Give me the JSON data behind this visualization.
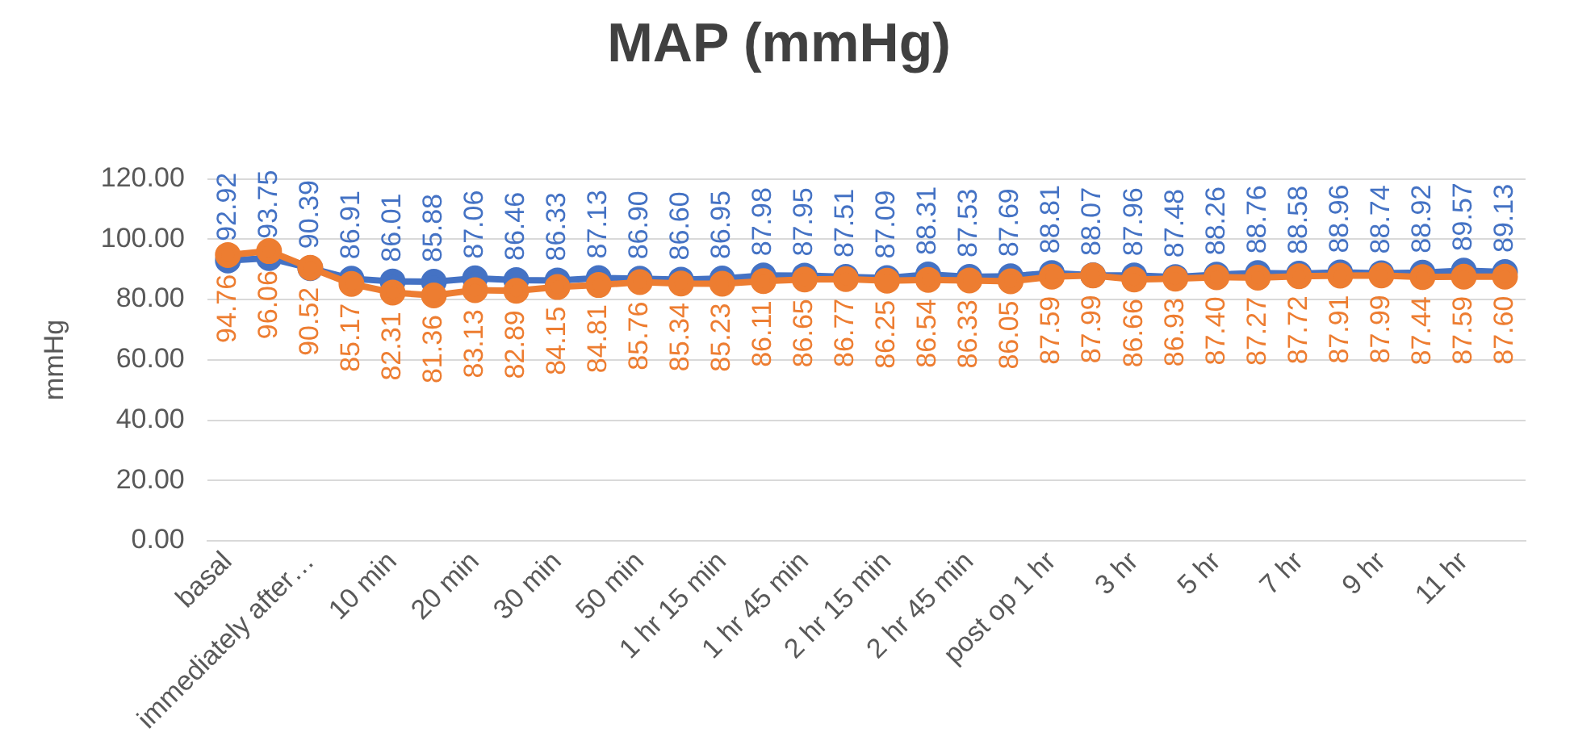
{
  "chart_data": {
    "type": "line",
    "title": "MAP (mmHg)",
    "ylabel": "mmHg",
    "categories": [
      "basal",
      null,
      "immediately after…",
      null,
      "10 min",
      null,
      "20 min",
      null,
      "30 min",
      null,
      "50 min",
      null,
      "1 hr 15 min",
      null,
      "1 hr 45 min",
      null,
      "2 hr 15 min",
      null,
      "2 hr 45 min",
      null,
      "post op 1 hr",
      null,
      "3 hr",
      null,
      "5 hr",
      null,
      "7 hr",
      null,
      "9 hr",
      null,
      "11 hr",
      null
    ],
    "series": [
      {
        "color": "#4472c4",
        "values": [
          92.92,
          93.75,
          90.39,
          86.91,
          86.01,
          85.88,
          87.06,
          86.46,
          86.33,
          87.13,
          86.9,
          86.6,
          86.95,
          87.98,
          87.95,
          87.51,
          87.09,
          88.31,
          87.53,
          87.69,
          88.81,
          88.07,
          87.96,
          87.48,
          88.26,
          88.76,
          88.58,
          88.96,
          88.74,
          88.92,
          89.57,
          89.13
        ],
        "value_labels": [
          "92.92",
          "93.75",
          "90.39",
          "86.91",
          "86.01",
          "85.88",
          "87.06",
          "86.46",
          "86.33",
          "87.13",
          "86.90",
          "86.60",
          "86.95",
          "87.98",
          "87.95",
          "87.51",
          "87.09",
          "88.31",
          "87.53",
          "87.69",
          "88.81",
          "88.07",
          "87.96",
          "87.48",
          "88.26",
          "88.76",
          "88.58",
          "88.96",
          "88.74",
          "88.92",
          "89.57",
          "89.13"
        ]
      },
      {
        "color": "#ed7d31",
        "values": [
          94.76,
          96.06,
          90.52,
          85.17,
          82.31,
          81.36,
          83.13,
          82.89,
          84.15,
          84.81,
          85.76,
          85.34,
          85.23,
          86.11,
          86.65,
          86.77,
          86.25,
          86.54,
          86.33,
          86.05,
          87.59,
          87.99,
          86.66,
          86.93,
          87.4,
          87.27,
          87.72,
          87.91,
          87.99,
          87.44,
          87.59,
          87.6
        ],
        "value_labels": [
          "94.76",
          "96.06",
          "90.52",
          "85.17",
          "82.31",
          "81.36",
          "83.13",
          "82.89",
          "84.15",
          "84.81",
          "85.76",
          "85.34",
          "85.23",
          "86.11",
          "86.65",
          "86.77",
          "86.25",
          "86.54",
          "86.33",
          "86.05",
          "87.59",
          "87.99",
          "86.66",
          "86.93",
          "87.40",
          "87.27",
          "87.72",
          "87.91",
          "87.99",
          "87.44",
          "87.59",
          "87.60"
        ]
      }
    ],
    "ylim": [
      0,
      120
    ],
    "yticks": [
      {
        "value": 0,
        "label": "0.00"
      },
      {
        "value": 20,
        "label": "20.00"
      },
      {
        "value": 40,
        "label": "40.00"
      },
      {
        "value": 60,
        "label": "60.00"
      },
      {
        "value": 80,
        "label": "80.00"
      },
      {
        "value": 100,
        "label": "100.00"
      },
      {
        "value": 120,
        "label": "120.00"
      }
    ],
    "grid": "y",
    "legend": false,
    "marker": "circle",
    "line_style": "solid"
  }
}
